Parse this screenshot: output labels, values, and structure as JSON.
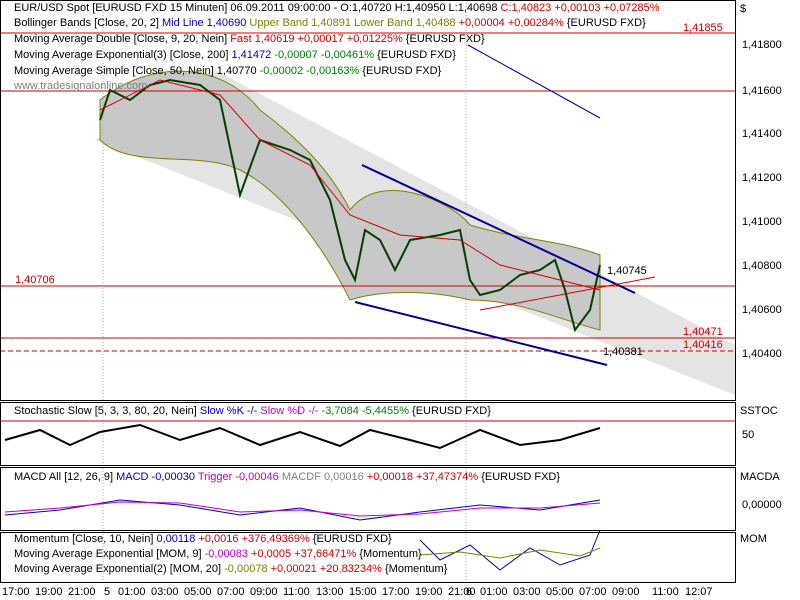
{
  "header": {
    "currency": "$"
  },
  "main_panel": {
    "legend": [
      [
        "EUR/USD Spot [EURUSD FXD  15 Minuten] 06.09.2011 09:00:00 - O:1,40720 H:1,40950 L:1,40698 ",
        "C:1,40823 +0,00103 +0,07285%"
      ],
      [
        "Bollinger Bands [Close, 20, 2]",
        " Mid Line 1,40690",
        " Upper Band 1,40891",
        " Lower Band 1,40488",
        " +0,00004 +0,00284%",
        " {EURUSD FXD}"
      ],
      [
        "Moving Average Double [Close, 9, 20, Nein]",
        " Fast 1,40619 +0,00017 +0,01225%",
        " {EURUSD FXD}"
      ],
      [
        "Moving Average Exponential(3) [Close, 200]",
        " 1,41472",
        " -0,00007 -0,00461%",
        " {EURUSD FXD}"
      ],
      [
        "Moving Average Simple [Close, 50, Nein]",
        " 1,40770",
        " -0,00002 -0,00163%",
        " {EURUSD FXD}"
      ]
    ],
    "watermark": "www.tradesignalonline.com",
    "price_axis": [
      "1,41800",
      "1,41600",
      "1,41400",
      "1,41200",
      "1,41000",
      "1,40800",
      "1,40600",
      "1,40400"
    ],
    "level_labels": [
      "1,41855",
      "1,40706",
      "1,40745",
      "1,40471",
      "1,40416",
      "1,40381"
    ]
  },
  "stochastic_panel": {
    "legend": [
      [
        "Stochastic Slow [5, 3, 3, 80, 20, Nein]",
        " Slow %K -/-",
        " Slow %D -/-",
        " -3,7084 -5,4455%",
        " {EURUSD FXD}"
      ]
    ],
    "axis_name": "SSTOC",
    "axis_ticks": [
      "50"
    ]
  },
  "macd_panel": {
    "legend": [
      [
        "MACD All [12, 26, 9]",
        " MACD -0,00030",
        " Trigger -0,00046",
        " MACDF 0,00016",
        " +0,00018 +37,47374%",
        " {EURUSD FXD}"
      ]
    ],
    "axis_name": "MACDA",
    "axis_ticks": [
      "0,00000"
    ]
  },
  "momentum_panel": {
    "legend": [
      [
        "Momentum [Close, 10, Nein]",
        " 0,00118",
        " +0,0016 +376,49369%",
        " {EURUSD FXD}"
      ],
      [
        "Moving Average Exponential [MOM, 9]",
        " -0,00083",
        " +0,0005 +37,66471%",
        " {Momentum}"
      ],
      [
        "Moving Average Exponential(2) [MOM, 20]",
        " -0,00078",
        " +0,00021 +20,83234%",
        " {Momentum}"
      ]
    ],
    "axis_name": "MOM"
  },
  "time_axis": [
    "17:00",
    "19:00",
    "21:00",
    "5",
    "01:00",
    "03:00",
    "05:00",
    "07:00",
    "09:00",
    "11:00",
    "13:00",
    "15:00",
    "17:00",
    "19:00",
    "21:00",
    "6",
    "01:00",
    "03:00",
    "05:00",
    "07:00",
    "09:00",
    "11:00",
    "12:07"
  ]
}
